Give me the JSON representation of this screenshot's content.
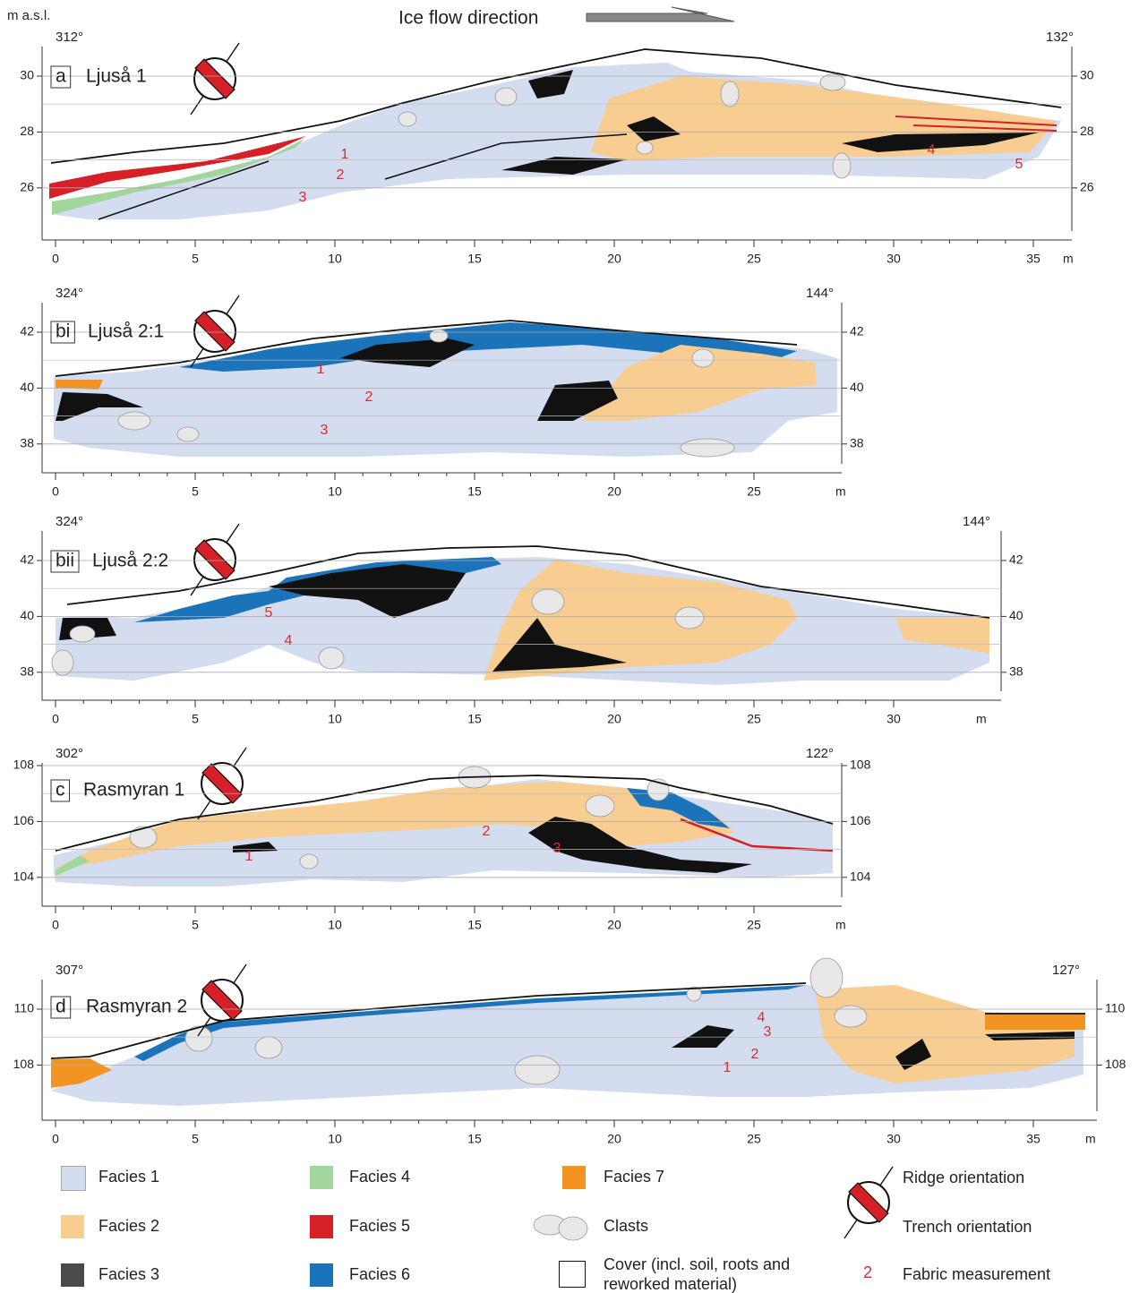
{
  "header": {
    "y_unit": "m a.s.l.",
    "flow": "Ice flow direction"
  },
  "panels": [
    {
      "label": "a",
      "name": "Ljuså 1",
      "left_bearing": "312°",
      "right_bearing": "132°",
      "yticks": [
        30,
        28,
        26
      ],
      "xticks": [
        0,
        5,
        10,
        15,
        20,
        25,
        30,
        35
      ],
      "x_unit": "m",
      "fabric": [
        "1",
        "2",
        "3",
        "4",
        "5"
      ]
    },
    {
      "label": "bi",
      "name": "Ljuså 2:1",
      "left_bearing": "324°",
      "right_bearing": "144°",
      "yticks": [
        42,
        40,
        38
      ],
      "xticks": [
        0,
        5,
        10,
        15,
        20,
        25
      ],
      "x_unit": "m",
      "fabric": [
        "1",
        "2",
        "3"
      ]
    },
    {
      "label": "bii",
      "name": "Ljuså 2:2",
      "left_bearing": "324°",
      "right_bearing": "144°",
      "yticks": [
        42,
        40,
        38
      ],
      "xticks": [
        0,
        5,
        10,
        15,
        20,
        25,
        30
      ],
      "x_unit": "m",
      "fabric": [
        "5",
        "4"
      ]
    },
    {
      "label": "c",
      "name": "Rasmyran 1",
      "left_bearing": "302°",
      "right_bearing": "122°",
      "yticks": [
        108,
        106,
        104
      ],
      "xticks": [
        0,
        5,
        10,
        15,
        20,
        25
      ],
      "x_unit": "m",
      "fabric": [
        "1",
        "2",
        "3"
      ]
    },
    {
      "label": "d",
      "name": "Rasmyran 2",
      "left_bearing": "307°",
      "right_bearing": "127°",
      "yticks": [
        110,
        108
      ],
      "xticks": [
        0,
        5,
        10,
        15,
        20,
        25,
        30,
        35
      ],
      "x_unit": "m",
      "fabric": [
        "4",
        "3",
        "2",
        "1"
      ]
    }
  ],
  "legend": {
    "facies": [
      "Facies 1",
      "Facies 2",
      "Facies 3",
      "Facies 4",
      "Facies 5",
      "Facies 6",
      "Facies 7"
    ],
    "clasts": "Clasts",
    "cover": "Cover (incl. soil, roots and reworked material)",
    "ridge": "Ridge orientation",
    "trench": "Trench orientation",
    "fabric_symbol": "2",
    "fabric": "Fabric measurement"
  }
}
